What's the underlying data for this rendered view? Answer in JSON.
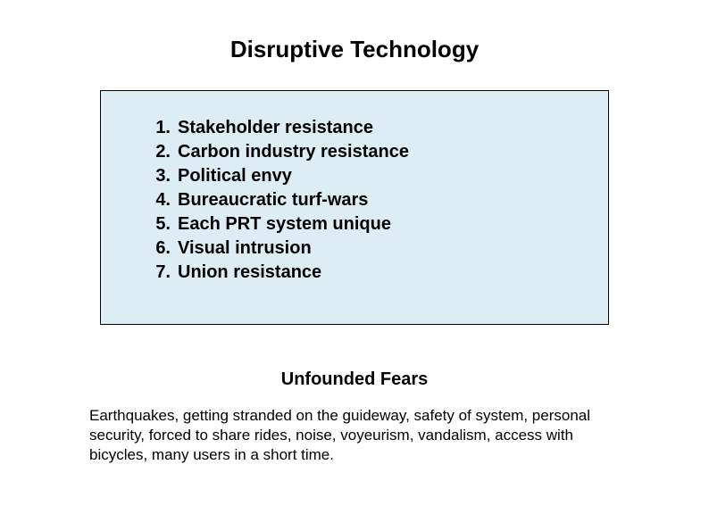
{
  "title": "Disruptive Technology",
  "box": {
    "background_color": "#dceef3",
    "border_color": "#000000",
    "items": [
      "Stakeholder resistance",
      "Carbon industry resistance",
      "Political envy",
      "Bureaucratic turf-wars",
      "Each PRT system unique",
      "Visual intrusion",
      "Union resistance"
    ]
  },
  "subtitle": "Unfounded Fears",
  "body_text": "Earthquakes, getting stranded on the guideway, safety of system, personal security, forced to share rides, noise, voyeurism, vandalism, access with bicycles, many users in a short time."
}
